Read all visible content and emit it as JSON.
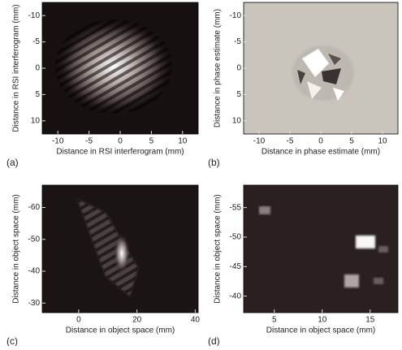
{
  "chart_data": [
    {
      "type": "image",
      "panel_label": "(a)",
      "xlabel": "Distance in RSI interferogram (mm)",
      "ylabel": "Distance in RSI interferogram (mm)",
      "xlim": [
        -12.5,
        12.5
      ],
      "ylim": [
        -12.5,
        12.5
      ],
      "y_inverted": true,
      "xticks": [
        -10,
        -5,
        0,
        5,
        10
      ],
      "yticks": [
        -10,
        -5,
        0,
        5,
        10
      ]
    },
    {
      "type": "image",
      "panel_label": "(b)",
      "xlabel": "Distance in phase estimate (mm)",
      "ylabel": "Distance in phase estimate (mm)",
      "xlim": [
        -12.5,
        12.5
      ],
      "ylim": [
        -12.5,
        12.5
      ],
      "y_inverted": true,
      "xticks": [
        -10,
        -5,
        0,
        5,
        10
      ],
      "yticks": [
        -10,
        -5,
        0,
        5,
        10
      ]
    },
    {
      "type": "image",
      "panel_label": "(c)",
      "xlabel": "Distance in object space (mm)",
      "ylabel": "Distance in object space (mm)",
      "xlim": [
        -12.5,
        41
      ],
      "ylim": [
        -67,
        -27
      ],
      "y_inverted": true,
      "xticks": [
        0,
        20,
        40
      ],
      "yticks": [
        -60,
        -50,
        -40,
        -30
      ]
    },
    {
      "type": "image",
      "panel_label": "(d)",
      "xlabel": "Distance in object space (mm)",
      "ylabel": "Distance in object space (mm)",
      "xlim": [
        1.8,
        17.9
      ],
      "ylim": [
        -58.8,
        -37.2
      ],
      "y_inverted": true,
      "xticks": [
        5,
        10,
        15
      ],
      "yticks": [
        -55,
        -50,
        -45,
        -40
      ]
    }
  ]
}
